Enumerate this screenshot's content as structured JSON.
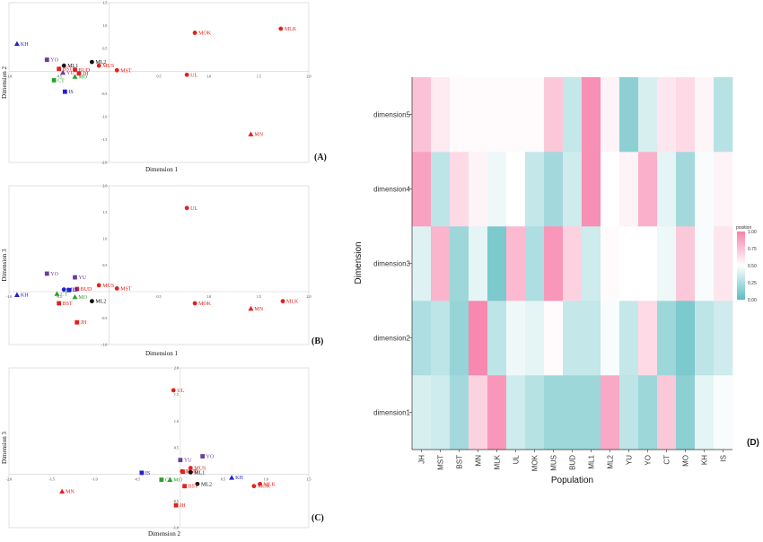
{
  "colors": {
    "red": "#e3201b",
    "blue": "#2222cc",
    "purple": "#6a3d9a",
    "green": "#2ca02c",
    "black": "#111111",
    "high": "#f783ac",
    "mid": "#ffffff",
    "low": "#5bbcc2"
  },
  "chart_data": [
    {
      "type": "scatter",
      "panel_label": "(A)",
      "xlabel": "Dimension 1",
      "ylabel": "Dimension 2",
      "xlim": [
        -1.0,
        2.0
      ],
      "ylim": [
        -2.0,
        1.5
      ],
      "xticks": [
        "-1.0",
        "-0.5",
        "0.5",
        "1.0",
        "1.5",
        "2.0"
      ],
      "xtick_values": [
        -1.0,
        -0.5,
        0.5,
        1.0,
        1.5,
        2.0
      ],
      "yticks": [
        "1.5",
        "1.0",
        "0.5",
        "-0.5",
        "-1.0",
        "-1.5",
        "-2.0"
      ],
      "ytick_values": [
        1.5,
        1.0,
        0.5,
        -0.5,
        -1.0,
        -1.5,
        -2.0
      ],
      "points": [
        {
          "label": "KH",
          "x": -0.92,
          "y": 0.6,
          "shape": "triangle",
          "color": "blue"
        },
        {
          "label": "YO",
          "x": -0.62,
          "y": 0.25,
          "shape": "square",
          "color": "purple"
        },
        {
          "label": "ML1",
          "x": -0.45,
          "y": 0.12,
          "shape": "circle",
          "color": "black"
        },
        {
          "label": "BST",
          "x": -0.5,
          "y": 0.05,
          "shape": "square",
          "color": "red"
        },
        {
          "label": "BUD",
          "x": -0.34,
          "y": 0.03,
          "shape": "square",
          "color": "red"
        },
        {
          "label": "ML2",
          "x": -0.17,
          "y": 0.2,
          "shape": "circle",
          "color": "black"
        },
        {
          "label": "MUS",
          "x": -0.1,
          "y": 0.12,
          "shape": "circle",
          "color": "red"
        },
        {
          "label": "MST",
          "x": 0.08,
          "y": 0.02,
          "shape": "circle",
          "color": "red"
        },
        {
          "label": "YU",
          "x": -0.46,
          "y": -0.03,
          "shape": "triangle",
          "color": "purple"
        },
        {
          "label": "JH",
          "x": -0.3,
          "y": -0.05,
          "shape": "square",
          "color": "red"
        },
        {
          "label": "MO",
          "x": -0.34,
          "y": -0.12,
          "shape": "triangle",
          "color": "green"
        },
        {
          "label": "CT",
          "x": -0.55,
          "y": -0.2,
          "shape": "square",
          "color": "green"
        },
        {
          "label": "IS",
          "x": -0.44,
          "y": -0.45,
          "shape": "square",
          "color": "blue"
        },
        {
          "label": "MOK",
          "x": 0.86,
          "y": 0.84,
          "shape": "circle",
          "color": "red"
        },
        {
          "label": "MLK",
          "x": 1.72,
          "y": 0.93,
          "shape": "circle",
          "color": "red"
        },
        {
          "label": "UL",
          "x": 0.78,
          "y": -0.08,
          "shape": "circle",
          "color": "red"
        },
        {
          "label": "MN",
          "x": 1.42,
          "y": -1.38,
          "shape": "triangle",
          "color": "red"
        }
      ]
    },
    {
      "type": "scatter",
      "panel_label": "(B)",
      "xlabel": "Dimension 1",
      "ylabel": "Dimension 3",
      "xlim": [
        -1.0,
        2.0
      ],
      "ylim": [
        -1.0,
        2.0
      ],
      "xticks": [
        "-1.0",
        "-0.5",
        "0.5",
        "1.0",
        "1.5",
        "2.0"
      ],
      "xtick_values": [
        -1.0,
        -0.5,
        0.5,
        1.0,
        1.5,
        2.0
      ],
      "yticks": [
        "2.0",
        "1.5",
        "1.0",
        "0.5",
        "-0.5",
        "-1.0"
      ],
      "ytick_values": [
        2.0,
        1.5,
        1.0,
        0.5,
        -0.5,
        -1.0
      ],
      "points": [
        {
          "label": "UL",
          "x": 0.78,
          "y": 1.58,
          "shape": "circle",
          "color": "red"
        },
        {
          "label": "YO",
          "x": -0.62,
          "y": 0.34,
          "shape": "square",
          "color": "purple"
        },
        {
          "label": "YU",
          "x": -0.34,
          "y": 0.27,
          "shape": "square",
          "color": "purple"
        },
        {
          "label": "MUS",
          "x": -0.1,
          "y": 0.12,
          "shape": "circle",
          "color": "red"
        },
        {
          "label": "MST",
          "x": 0.08,
          "y": 0.06,
          "shape": "circle",
          "color": "red"
        },
        {
          "label": "BUD",
          "x": -0.32,
          "y": 0.05,
          "shape": "square",
          "color": "red"
        },
        {
          "label": "ML1",
          "x": -0.45,
          "y": 0.04,
          "shape": "circle",
          "color": "blue"
        },
        {
          "label": "IS",
          "x": -0.4,
          "y": 0.03,
          "shape": "square",
          "color": "blue"
        },
        {
          "label": "KH",
          "x": -0.92,
          "y": -0.06,
          "shape": "triangle",
          "color": "blue"
        },
        {
          "label": "CT",
          "x": -0.52,
          "y": -0.04,
          "shape": "triangle",
          "color": "green"
        },
        {
          "label": "MO",
          "x": -0.34,
          "y": -0.1,
          "shape": "triangle",
          "color": "green"
        },
        {
          "label": "ML2",
          "x": -0.17,
          "y": -0.18,
          "shape": "circle",
          "color": "black"
        },
        {
          "label": "BST",
          "x": -0.5,
          "y": -0.22,
          "shape": "square",
          "color": "red"
        },
        {
          "label": "JH",
          "x": -0.32,
          "y": -0.58,
          "shape": "square",
          "color": "red"
        },
        {
          "label": "MOK",
          "x": 0.86,
          "y": -0.22,
          "shape": "circle",
          "color": "red"
        },
        {
          "label": "MN",
          "x": 1.42,
          "y": -0.32,
          "shape": "triangle",
          "color": "red"
        },
        {
          "label": "MLK",
          "x": 1.74,
          "y": -0.18,
          "shape": "circle",
          "color": "red"
        }
      ]
    },
    {
      "type": "scatter",
      "panel_label": "(C)",
      "xlabel": "Dimension 2",
      "ylabel": "Dimension 3",
      "xlim": [
        -2.0,
        1.5
      ],
      "ylim": [
        -1.0,
        2.0
      ],
      "xticks": [
        "-2.0",
        "-1.5",
        "-1.0",
        "-0.5",
        "0.5",
        "1.0",
        "1.5"
      ],
      "xtick_values": [
        -2.0,
        -1.5,
        -1.0,
        -0.5,
        0.5,
        1.0,
        1.5
      ],
      "yticks": [
        "2.0",
        "1.5",
        "1.0",
        "0.5",
        "-0.5",
        "-1.0"
      ],
      "ytick_values": [
        2.0,
        1.5,
        1.0,
        0.5,
        -0.5,
        -1.0
      ],
      "points": [
        {
          "label": "UL",
          "x": -0.08,
          "y": 1.58,
          "shape": "circle",
          "color": "red"
        },
        {
          "label": "YO",
          "x": 0.26,
          "y": 0.34,
          "shape": "square",
          "color": "purple"
        },
        {
          "label": "YU",
          "x": 0.0,
          "y": 0.27,
          "shape": "square",
          "color": "purple"
        },
        {
          "label": "MUS",
          "x": 0.12,
          "y": 0.12,
          "shape": "circle",
          "color": "red"
        },
        {
          "label": "MST",
          "x": 0.02,
          "y": 0.06,
          "shape": "circle",
          "color": "red"
        },
        {
          "label": "BUD",
          "x": 0.03,
          "y": 0.05,
          "shape": "square",
          "color": "red"
        },
        {
          "label": "ML1",
          "x": 0.12,
          "y": 0.04,
          "shape": "circle",
          "color": "black"
        },
        {
          "label": "IS",
          "x": -0.45,
          "y": 0.03,
          "shape": "square",
          "color": "blue"
        },
        {
          "label": "KH",
          "x": 0.6,
          "y": -0.06,
          "shape": "triangle",
          "color": "blue"
        },
        {
          "label": "CT",
          "x": -0.22,
          "y": -0.1,
          "shape": "square",
          "color": "green"
        },
        {
          "label": "MO",
          "x": -0.12,
          "y": -0.1,
          "shape": "triangle",
          "color": "green"
        },
        {
          "label": "ML2",
          "x": 0.2,
          "y": -0.18,
          "shape": "circle",
          "color": "black"
        },
        {
          "label": "BST",
          "x": 0.05,
          "y": -0.22,
          "shape": "square",
          "color": "red"
        },
        {
          "label": "JH",
          "x": -0.05,
          "y": -0.58,
          "shape": "square",
          "color": "red"
        },
        {
          "label": "MOK",
          "x": 0.86,
          "y": -0.22,
          "shape": "circle",
          "color": "red"
        },
        {
          "label": "MLK",
          "x": 0.93,
          "y": -0.18,
          "shape": "circle",
          "color": "red"
        },
        {
          "label": "MN",
          "x": -1.38,
          "y": -0.32,
          "shape": "triangle",
          "color": "red"
        }
      ]
    },
    {
      "type": "heatmap",
      "panel_label": "(D)",
      "xlabel": "Population",
      "ylabel": "Dimension",
      "x": [
        "JH",
        "MST",
        "BST",
        "MN",
        "MLK",
        "UL",
        "MOK",
        "MUS",
        "BUD",
        "ML1",
        "ML2",
        "YU",
        "YO",
        "CT",
        "MO",
        "KH",
        "IS"
      ],
      "y": [
        "dimension1",
        "dimension2",
        "dimension3",
        "dimension4",
        "dimension5"
      ],
      "legend": {
        "title": "position",
        "ticks": [
          "1.00",
          "0.75",
          "0.50",
          "0.25",
          "0.00"
        ],
        "tick_values": [
          1.0,
          0.75,
          0.5,
          0.25,
          0.0
        ]
      },
      "values": [
        [
          0.38,
          0.35,
          0.22,
          0.68,
          0.92,
          0.35,
          0.28,
          0.2,
          0.2,
          0.2,
          0.85,
          0.3,
          0.2,
          0.72,
          0.15,
          0.42,
          0.48
        ],
        [
          0.25,
          0.3,
          0.18,
          0.98,
          0.3,
          0.45,
          0.42,
          0.52,
          0.32,
          0.32,
          0.48,
          0.32,
          0.65,
          0.2,
          0.1,
          0.3,
          0.35
        ],
        [
          0.4,
          0.8,
          0.2,
          0.42,
          0.1,
          0.78,
          0.25,
          0.92,
          0.68,
          0.35,
          0.52,
          0.5,
          0.5,
          0.45,
          0.72,
          0.48,
          0.6
        ],
        [
          0.88,
          0.3,
          0.65,
          0.55,
          0.45,
          0.5,
          0.32,
          0.22,
          0.35,
          0.95,
          0.5,
          0.55,
          0.82,
          0.42,
          0.22,
          0.48,
          0.55
        ],
        [
          0.75,
          0.58,
          0.52,
          0.52,
          0.52,
          0.52,
          0.52,
          0.72,
          0.32,
          0.95,
          0.55,
          0.15,
          0.38,
          0.6,
          0.65,
          0.54,
          0.28
        ]
      ]
    }
  ]
}
